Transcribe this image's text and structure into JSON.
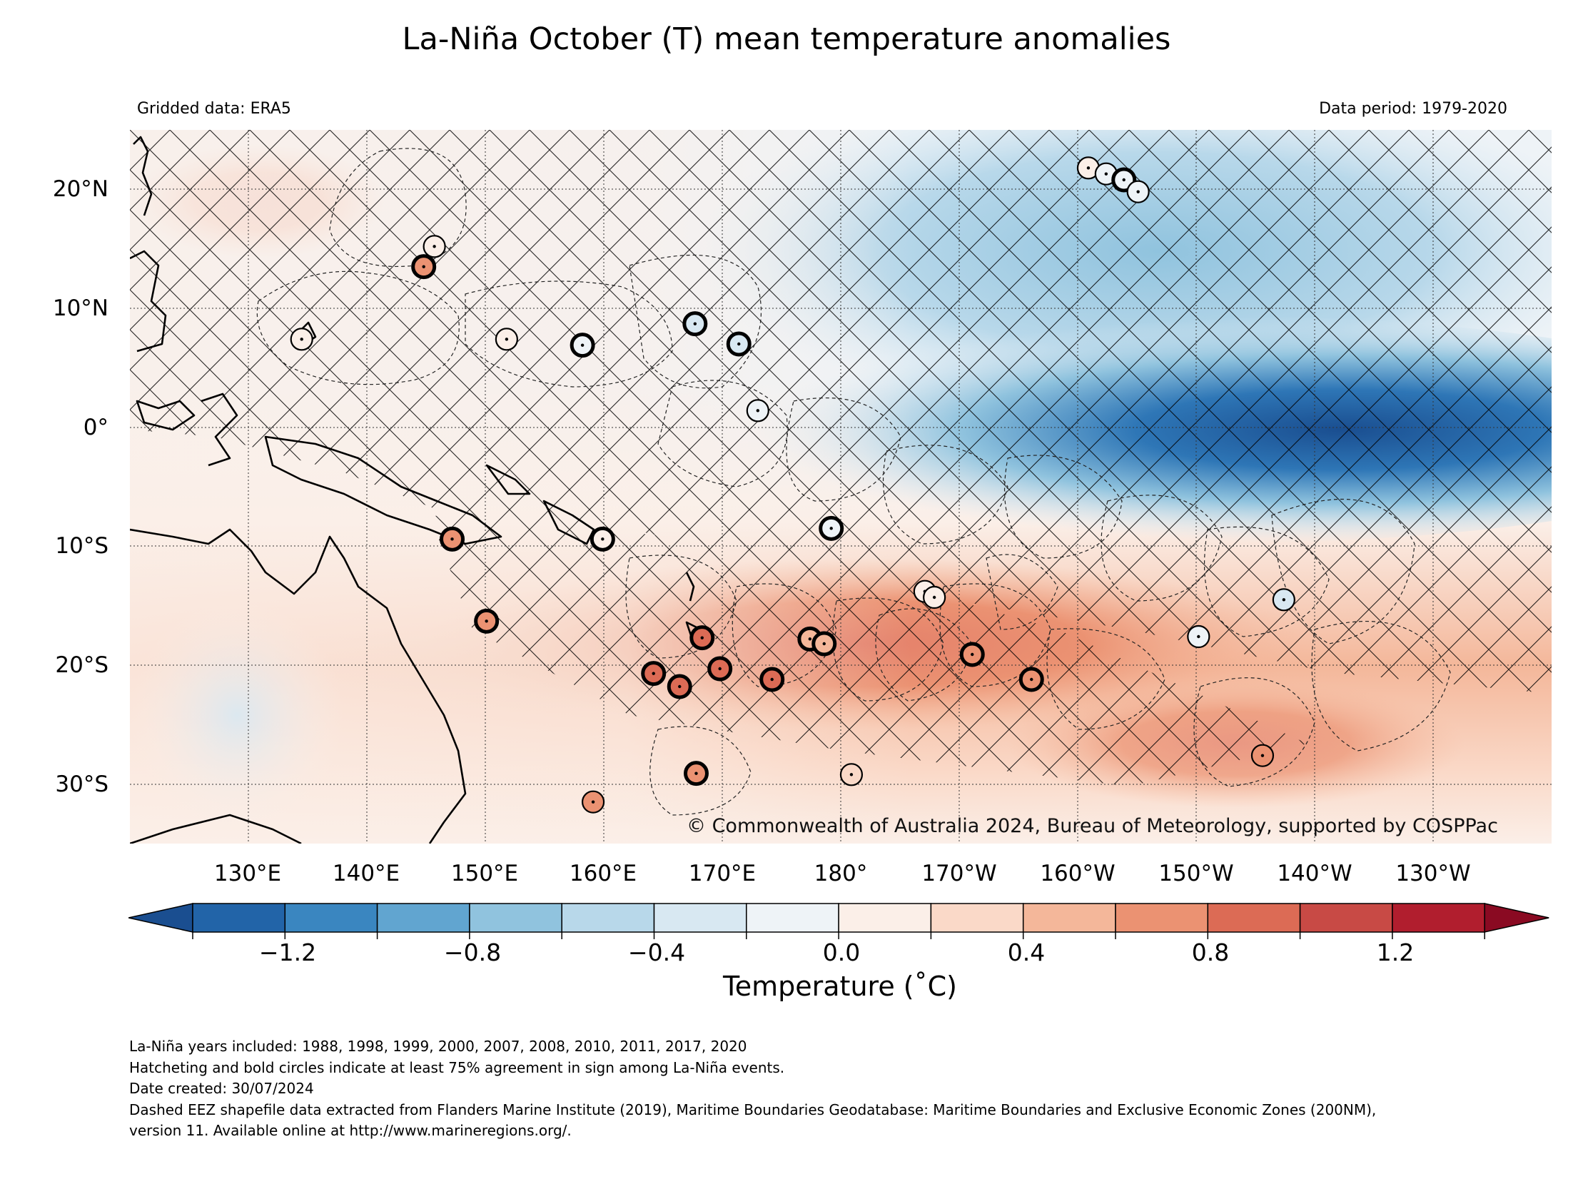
{
  "title": "La-Niña October (T) mean temperature anomalies",
  "gridded_label": "Gridded data: ERA5",
  "period_label": "Data period: 1979-2020",
  "credit": "© Commonwealth of Australia 2024, Bureau of Meteorology, supported by COSPPac",
  "lon_labels": [
    "130°E",
    "140°E",
    "150°E",
    "160°E",
    "170°E",
    "180°",
    "170°W",
    "160°W",
    "150°W",
    "140°W",
    "130°W"
  ],
  "lat_labels": [
    "20°N",
    "10°N",
    "0°",
    "10°S",
    "20°S",
    "30°S"
  ],
  "map_extent": {
    "lon_min": 120,
    "lon_max": 240,
    "lat_min": -35,
    "lat_max": 25
  },
  "colorbar": {
    "label": "Temperature (˚C)",
    "tick_labels": [
      "−1.2",
      "−0.8",
      "−0.4",
      "0.0",
      "0.4",
      "0.8",
      "1.2"
    ],
    "tick_values": [
      -1.2,
      -0.8,
      -0.4,
      0.0,
      0.4,
      0.8,
      1.2
    ],
    "bounds": [
      -1.4,
      -1.2,
      -1.0,
      -0.8,
      -0.6,
      -0.4,
      -0.2,
      0.0,
      0.2,
      0.4,
      0.6,
      0.8,
      1.0,
      1.2,
      1.4
    ],
    "colors": [
      "#2264a8",
      "#3a86c0",
      "#61a5d0",
      "#90c3de",
      "#b8d8ea",
      "#d8e8f2",
      "#eef3f7",
      "#fbefe8",
      "#fad9c8",
      "#f4b79a",
      "#eb9272",
      "#dc6b55",
      "#c84a45",
      "#b11e2e"
    ],
    "extend_min_color": "#1a4e90",
    "extend_max_color": "#8a0a22"
  },
  "notes": [
    "La-Niña years included: 1988, 1998, 1999, 2000, 2007, 2008, 2010, 2011, 2017, 2020",
    "Hatcheting and bold circles indicate at least 75% agreement in sign among La-Niña events.",
    "Date created: 30/07/2024",
    "Dashed EEZ shapefile data extracted from Flanders Marine Institute (2019), Maritime Boundaries Geodatabase: Maritime Boundaries and Exclusive Economic Zones (200NM),",
    "version 11. Available online at http://www.marineregions.org/."
  ],
  "stations": [
    {
      "lon": 145.7,
      "lat": 15.2,
      "anom": 0.05,
      "bold": false
    },
    {
      "lon": 144.8,
      "lat": 13.5,
      "anom": 0.7,
      "bold": true
    },
    {
      "lon": 134.5,
      "lat": 7.4,
      "anom": 0.1,
      "bold": false
    },
    {
      "lon": 151.8,
      "lat": 7.4,
      "anom": 0.05,
      "bold": false
    },
    {
      "lon": 158.2,
      "lat": 6.9,
      "anom": -0.2,
      "bold": true
    },
    {
      "lon": 167.7,
      "lat": 8.7,
      "anom": -0.4,
      "bold": true
    },
    {
      "lon": 171.4,
      "lat": 7.0,
      "anom": -0.3,
      "bold": true
    },
    {
      "lon": 173.0,
      "lat": 1.4,
      "anom": -0.05,
      "bold": false
    },
    {
      "lon": 179.2,
      "lat": -8.5,
      "anom": -0.1,
      "bold": true
    },
    {
      "lon": 147.2,
      "lat": -9.4,
      "anom": 0.7,
      "bold": true
    },
    {
      "lon": 159.9,
      "lat": -9.4,
      "anom": 0.1,
      "bold": true
    },
    {
      "lon": 150.1,
      "lat": -16.3,
      "anom": 0.7,
      "bold": true
    },
    {
      "lon": 168.3,
      "lat": -17.7,
      "anom": 0.8,
      "bold": true
    },
    {
      "lon": 164.2,
      "lat": -20.7,
      "anom": 0.8,
      "bold": true
    },
    {
      "lon": 166.4,
      "lat": -21.8,
      "anom": 0.8,
      "bold": true
    },
    {
      "lon": 169.8,
      "lat": -20.3,
      "anom": 0.9,
      "bold": true
    },
    {
      "lon": 177.4,
      "lat": -17.8,
      "anom": 0.5,
      "bold": true
    },
    {
      "lon": 178.6,
      "lat": -18.2,
      "anom": 0.5,
      "bold": true
    },
    {
      "lon": 174.2,
      "lat": -21.2,
      "anom": 0.8,
      "bold": true
    },
    {
      "lon": 191.1,
      "lat": -19.1,
      "anom": 0.7,
      "bold": true
    },
    {
      "lon": 196.1,
      "lat": -21.2,
      "anom": 0.7,
      "bold": true
    },
    {
      "lon": 187.1,
      "lat": -13.8,
      "anom": 0.0,
      "bold": false
    },
    {
      "lon": 187.9,
      "lat": -14.3,
      "anom": 0.0,
      "bold": false
    },
    {
      "lon": 217.4,
      "lat": -14.5,
      "anom": -0.3,
      "bold": false
    },
    {
      "lon": 210.2,
      "lat": -17.6,
      "anom": -0.05,
      "bold": false
    },
    {
      "lon": 215.6,
      "lat": -27.6,
      "anom": 0.6,
      "bold": false
    },
    {
      "lon": 167.8,
      "lat": -29.1,
      "anom": 0.7,
      "bold": true
    },
    {
      "lon": 159.1,
      "lat": -31.5,
      "anom": 0.6,
      "bold": false
    },
    {
      "lon": 180.9,
      "lat": -29.2,
      "anom": 0.2,
      "bold": false
    },
    {
      "lon": 200.9,
      "lat": 21.8,
      "anom": 0.0,
      "bold": false
    },
    {
      "lon": 202.4,
      "lat": 21.3,
      "anom": -0.1,
      "bold": false
    },
    {
      "lon": 203.9,
      "lat": 20.8,
      "anom": -0.2,
      "bold": true
    },
    {
      "lon": 205.1,
      "lat": 19.8,
      "anom": -0.1,
      "bold": false
    }
  ]
}
